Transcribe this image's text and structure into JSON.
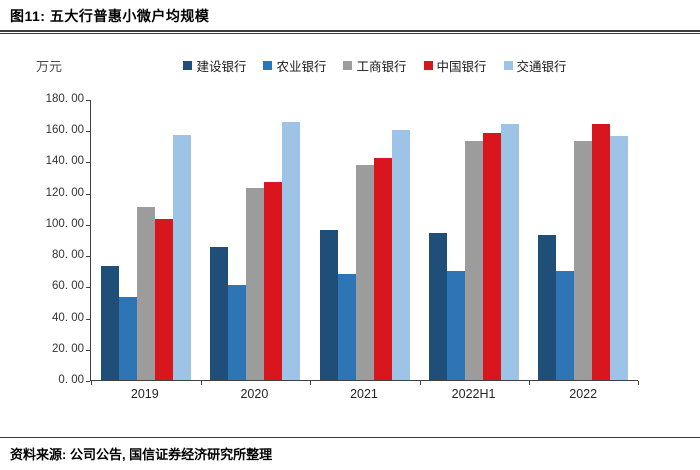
{
  "header": {
    "title": "图11: 五大行普惠小微户均规模"
  },
  "footer": {
    "source_note": "资料来源: 公司公告, 国信证券经济研究所整理"
  },
  "chart_data": {
    "type": "bar",
    "title": "五大行普惠小微户均规模",
    "unit_label": "万元",
    "categories": [
      "2019",
      "2020",
      "2021",
      "2022H1",
      "2022"
    ],
    "series": [
      {
        "name": "建设银行",
        "color": "#1F4E79",
        "values": [
          73,
          85,
          96,
          94,
          93
        ]
      },
      {
        "name": "农业银行",
        "color": "#2E75B6",
        "values": [
          53,
          61,
          68,
          70,
          70
        ]
      },
      {
        "name": "工商银行",
        "color": "#9C9C9C",
        "values": [
          111,
          123,
          138,
          153,
          153
        ]
      },
      {
        "name": "中国银行",
        "color": "#D9161E",
        "values": [
          103,
          127,
          142,
          158,
          164
        ]
      },
      {
        "name": "交通银行",
        "color": "#9DC3E6",
        "values": [
          157,
          165,
          160,
          164,
          156
        ]
      }
    ],
    "ylim": [
      0,
      180
    ],
    "ytick_step": 20,
    "ytick_labels": [
      "180. 00",
      "160. 00",
      "140. 00",
      "120. 00",
      "100. 00",
      "80. 00",
      "60. 00",
      "40. 00",
      "20. 00",
      "0. 00"
    ],
    "grid": false,
    "legend_position": "top",
    "axis_color": "#404040"
  }
}
